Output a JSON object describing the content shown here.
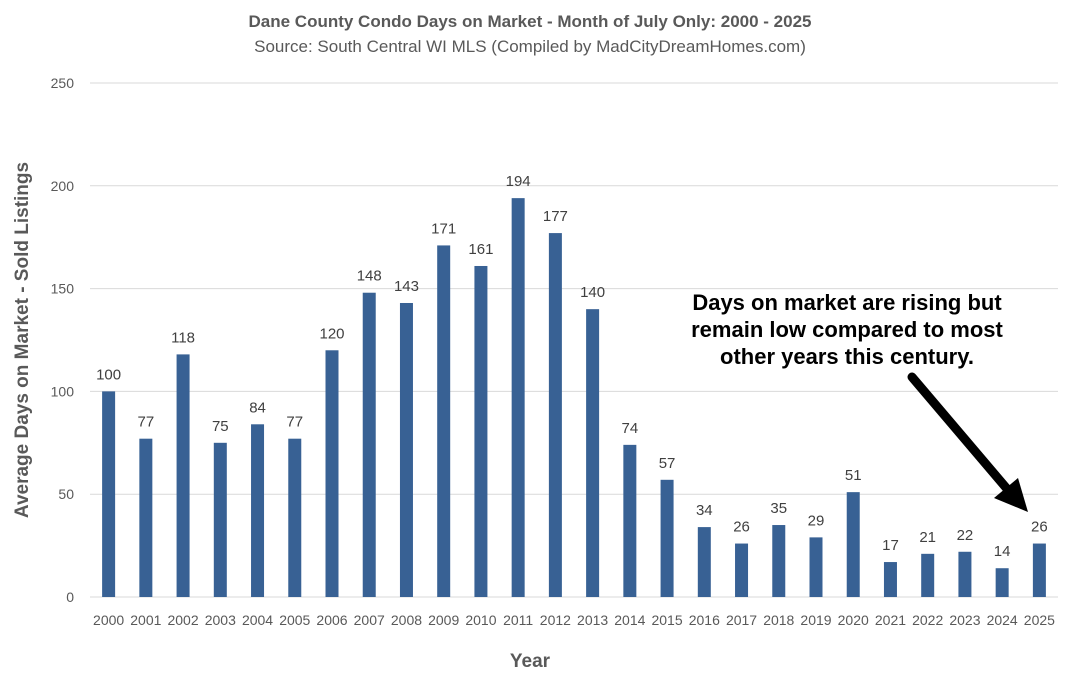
{
  "chart_data": {
    "type": "bar",
    "title": "Dane County Condo Days on Market - Month of July Only: 2000 - 2025",
    "subtitle": "Source: South Central WI MLS (Compiled by MadCityDreamHomes.com)",
    "xlabel": "Year",
    "ylabel": "Average Days on Market - Sold Listings",
    "ylim": [
      0,
      250
    ],
    "yticks": [
      0,
      50,
      100,
      150,
      200,
      250
    ],
    "grid": true,
    "categories": [
      "2000",
      "2001",
      "2002",
      "2003",
      "2004",
      "2005",
      "2006",
      "2007",
      "2008",
      "2009",
      "2010",
      "2011",
      "2012",
      "2013",
      "2014",
      "2015",
      "2016",
      "2017",
      "2018",
      "2019",
      "2020",
      "2021",
      "2022",
      "2023",
      "2024",
      "2025"
    ],
    "values": [
      100,
      77,
      118,
      75,
      84,
      77,
      120,
      148,
      143,
      171,
      161,
      194,
      177,
      140,
      74,
      57,
      34,
      26,
      35,
      29,
      51,
      17,
      21,
      22,
      14,
      26
    ],
    "bar_color": "#386194",
    "annotation": {
      "lines": [
        "Days on market are rising but",
        "remain low compared to most",
        "other years this century."
      ],
      "arrow_target": "2025"
    }
  }
}
